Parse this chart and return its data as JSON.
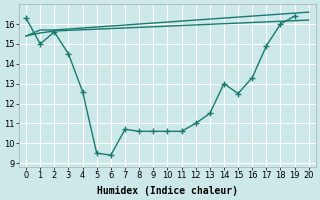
{
  "bg_color": "#cce8e8",
  "grid_color": "#ffffff",
  "line_color": "#1a7a6e",
  "xlabel": "Humidex (Indice chaleur)",
  "xlim": [
    -0.5,
    20.5
  ],
  "ylim": [
    8.8,
    17.0
  ],
  "yticks": [
    9,
    10,
    11,
    12,
    13,
    14,
    15,
    16
  ],
  "xticks": [
    0,
    1,
    2,
    3,
    4,
    5,
    6,
    7,
    8,
    9,
    10,
    11,
    12,
    13,
    14,
    15,
    16,
    17,
    18,
    19,
    20
  ],
  "line1_x": [
    0,
    1,
    2,
    3,
    4,
    5,
    6,
    7,
    8,
    9,
    10,
    11,
    12,
    13,
    14,
    15,
    16,
    17,
    18,
    19,
    20
  ],
  "line1_y": [
    16.3,
    15.0,
    15.6,
    14.5,
    12.6,
    9.5,
    9.4,
    10.7,
    10.6,
    10.6,
    10.6,
    10.6,
    11.0,
    11.5,
    13.0,
    12.5,
    13.3,
    14.9,
    16.0,
    16.4,
    null
  ],
  "line2_x": [
    0,
    1,
    2,
    20
  ],
  "line2_y": [
    15.4,
    15.7,
    15.7,
    16.6
  ],
  "line3_x": [
    0,
    1,
    2,
    20
  ],
  "line3_y": [
    15.4,
    15.55,
    15.65,
    16.2
  ]
}
